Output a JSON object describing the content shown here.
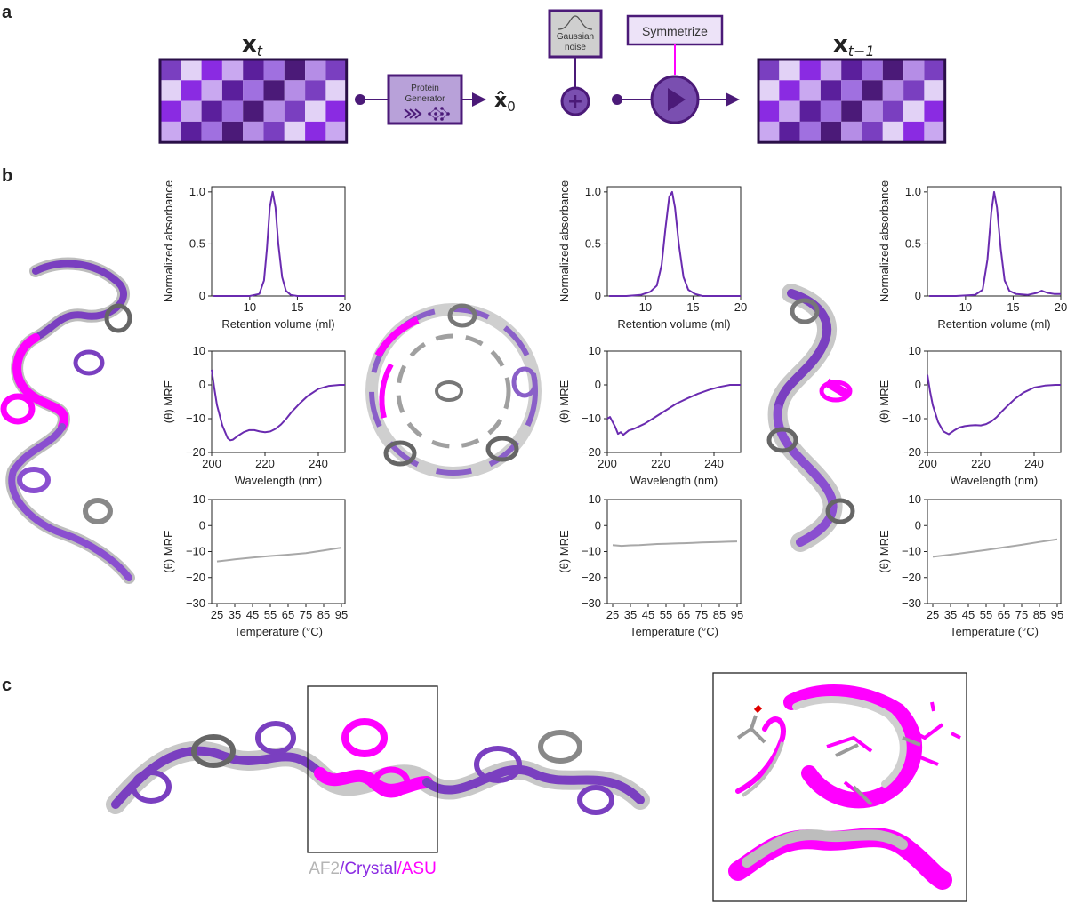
{
  "colors": {
    "purple_dark": "#4b1a78",
    "purple_main": "#7a3fc0",
    "purple_light": "#b58de6",
    "purple_pale": "#d9c8f0",
    "violet": "#8a2be2",
    "magenta": "#ff00ff",
    "gray": "#b5b5b5",
    "line_purple": "#6a2bb0",
    "line_gray": "#a8a8a8"
  },
  "panel_labels": {
    "a": "a",
    "b": "b",
    "c": "c"
  },
  "panel_a": {
    "xt_label": "x",
    "xt_sub": "t",
    "xt1_label": "x",
    "xt1_sub": "t−1",
    "x0_label": "x̂",
    "x0_sub": "0",
    "generator_line1": "Protein",
    "generator_line2": "Generator",
    "noise_line1": "Gaussian",
    "noise_line2": "noise",
    "symmetrize_label": "Symmetrize",
    "plus_symbol": "+"
  },
  "panel_c": {
    "legend_af2": "AF2",
    "legend_sep1": "/",
    "legend_crystal": "Crystal",
    "legend_sep2": "/",
    "legend_asu": "ASU"
  },
  "chart_data": [
    {
      "id": "sec1",
      "type": "line",
      "xlabel": "Retention volume (ml)",
      "ylabel": "Normalized absorbance",
      "xlim": [
        6,
        20
      ],
      "ylim": [
        0,
        1.05
      ],
      "xticks": [
        10,
        15,
        20
      ],
      "yticks": [
        0,
        0.5,
        1.0
      ],
      "xtick_labels": [
        "10",
        "15",
        "20"
      ],
      "ytick_labels": [
        "0",
        "0.5",
        "1.0"
      ],
      "series": [
        {
          "color": "#6a2bb0",
          "x": [
            6.2,
            8,
            10,
            11,
            11.5,
            11.8,
            12.1,
            12.4,
            12.7,
            13.0,
            13.4,
            13.8,
            14.3,
            15,
            16,
            18,
            20
          ],
          "y": [
            0.0,
            0.0,
            0.0,
            0.02,
            0.15,
            0.45,
            0.85,
            1.0,
            0.85,
            0.5,
            0.18,
            0.05,
            0.01,
            0.0,
            0.0,
            0.0,
            0.0
          ]
        }
      ]
    },
    {
      "id": "cd1",
      "type": "line",
      "xlabel": "Wavelength (nm)",
      "ylabel": "(θ) MRE",
      "xlim": [
        200,
        250
      ],
      "ylim": [
        -20,
        10
      ],
      "xticks": [
        200,
        220,
        240
      ],
      "yticks": [
        -20,
        -10,
        0,
        10
      ],
      "xtick_labels": [
        "200",
        "220",
        "240"
      ],
      "ytick_labels": [
        "−20",
        "−10",
        "0",
        "10"
      ],
      "series": [
        {
          "color": "#6a2bb0",
          "x": [
            200,
            201,
            202,
            204,
            206,
            207,
            208,
            210,
            212,
            214,
            216,
            218,
            220,
            222,
            224,
            226,
            228,
            230,
            233,
            236,
            240,
            244,
            248,
            250
          ],
          "y": [
            4.5,
            -1,
            -6,
            -12,
            -15.8,
            -16.4,
            -16.2,
            -15,
            -14,
            -13.4,
            -13.4,
            -13.8,
            -14,
            -13.8,
            -13,
            -11.7,
            -10,
            -8,
            -5.5,
            -3.3,
            -1.2,
            -0.3,
            0,
            0
          ]
        }
      ]
    },
    {
      "id": "tm1",
      "type": "line",
      "xlabel": "Temperature (°C)",
      "ylabel": "(θ) MRE",
      "xlim": [
        22,
        97
      ],
      "ylim": [
        -30,
        10
      ],
      "xticks": [
        25,
        35,
        45,
        55,
        65,
        75,
        85,
        95
      ],
      "yticks": [
        -30,
        -20,
        -10,
        0,
        10
      ],
      "xtick_labels": [
        "25",
        "35",
        "45",
        "55",
        "65",
        "75",
        "85",
        "95"
      ],
      "ytick_labels": [
        "−30",
        "−20",
        "−10",
        "0",
        "10"
      ],
      "series": [
        {
          "color": "#a8a8a8",
          "x": [
            25,
            35,
            45,
            55,
            65,
            75,
            85,
            95
          ],
          "y": [
            -13.8,
            -13.0,
            -12.3,
            -11.7,
            -11.2,
            -10.6,
            -9.6,
            -8.5
          ]
        }
      ]
    },
    {
      "id": "sec2",
      "type": "line",
      "xlabel": "Retention volume (ml)",
      "ylabel": "Normalized absorbance",
      "xlim": [
        6,
        20
      ],
      "ylim": [
        0,
        1.05
      ],
      "xticks": [
        10,
        15,
        20
      ],
      "yticks": [
        0,
        0.5,
        1.0
      ],
      "xtick_labels": [
        "10",
        "15",
        "20"
      ],
      "ytick_labels": [
        "0",
        "0.5",
        "1.0"
      ],
      "series": [
        {
          "color": "#6a2bb0",
          "x": [
            6.2,
            8,
            9.5,
            10.5,
            11.2,
            11.7,
            12.1,
            12.5,
            12.8,
            13.1,
            13.5,
            14,
            14.5,
            15.2,
            16,
            18,
            20
          ],
          "y": [
            0.0,
            0.0,
            0.01,
            0.04,
            0.1,
            0.3,
            0.65,
            0.95,
            1.0,
            0.85,
            0.5,
            0.18,
            0.06,
            0.02,
            0.0,
            0.0,
            0.0
          ]
        }
      ]
    },
    {
      "id": "cd2",
      "type": "line",
      "xlabel": "Wavelength (nm)",
      "ylabel": "(θ) MRE",
      "xlim": [
        200,
        250
      ],
      "ylim": [
        -20,
        10
      ],
      "xticks": [
        200,
        220,
        240
      ],
      "yticks": [
        -20,
        -10,
        0,
        10
      ],
      "xtick_labels": [
        "200",
        "220",
        "240"
      ],
      "ytick_labels": [
        "−20",
        "−10",
        "0",
        "10"
      ],
      "series": [
        {
          "color": "#6a2bb0",
          "x": [
            200,
            201,
            202,
            203,
            204,
            205,
            206,
            208,
            210,
            214,
            218,
            222,
            226,
            230,
            234,
            238,
            242,
            246,
            250
          ],
          "y": [
            -10,
            -9.5,
            -11,
            -12.5,
            -14.5,
            -14,
            -14.8,
            -13.5,
            -13,
            -11.5,
            -9.5,
            -7.5,
            -5.5,
            -4,
            -2.6,
            -1.5,
            -0.6,
            0,
            0
          ]
        }
      ]
    },
    {
      "id": "tm2",
      "type": "line",
      "xlabel": "Temperature (°C)",
      "ylabel": "(θ) MRE",
      "xlim": [
        22,
        97
      ],
      "ylim": [
        -30,
        10
      ],
      "xticks": [
        25,
        35,
        45,
        55,
        65,
        75,
        85,
        95
      ],
      "yticks": [
        -30,
        -20,
        -10,
        0,
        10
      ],
      "xtick_labels": [
        "25",
        "35",
        "45",
        "55",
        "65",
        "75",
        "85",
        "95"
      ],
      "ytick_labels": [
        "−30",
        "−20",
        "−10",
        "0",
        "10"
      ],
      "series": [
        {
          "color": "#a8a8a8",
          "x": [
            25,
            30,
            35,
            40,
            45,
            50,
            55,
            60,
            65,
            70,
            75,
            80,
            85,
            90,
            95
          ],
          "y": [
            -7.5,
            -7.8,
            -7.6,
            -7.5,
            -7.3,
            -7.1,
            -7.0,
            -6.9,
            -6.8,
            -6.7,
            -6.5,
            -6.4,
            -6.3,
            -6.2,
            -6.1
          ]
        }
      ]
    },
    {
      "id": "sec3",
      "type": "line",
      "xlabel": "Retention volume (ml)",
      "ylabel": "Normalized absorbance",
      "xlim": [
        6,
        20
      ],
      "ylim": [
        0,
        1.05
      ],
      "xticks": [
        10,
        15,
        20
      ],
      "yticks": [
        0,
        0.5,
        1.0
      ],
      "xtick_labels": [
        "10",
        "15",
        "20"
      ],
      "ytick_labels": [
        "0",
        "0.5",
        "1.0"
      ],
      "series": [
        {
          "color": "#6a2bb0",
          "x": [
            6.2,
            9,
            11,
            11.8,
            12.3,
            12.7,
            13.0,
            13.3,
            13.7,
            14.1,
            14.6,
            15.3,
            16.5,
            17.5,
            18,
            18.6,
            19.3,
            20
          ],
          "y": [
            0.0,
            0.0,
            0.01,
            0.06,
            0.35,
            0.8,
            1.0,
            0.85,
            0.45,
            0.15,
            0.05,
            0.02,
            0.01,
            0.03,
            0.05,
            0.03,
            0.02,
            0.02
          ]
        }
      ]
    },
    {
      "id": "cd3",
      "type": "line",
      "xlabel": "Wavelength (nm)",
      "ylabel": "(θ) MRE",
      "xlim": [
        200,
        250
      ],
      "ylim": [
        -20,
        10
      ],
      "xticks": [
        200,
        220,
        240
      ],
      "yticks": [
        -20,
        -10,
        0,
        10
      ],
      "xtick_labels": [
        "200",
        "220",
        "240"
      ],
      "ytick_labels": [
        "−20",
        "−10",
        "0",
        "10"
      ],
      "series": [
        {
          "color": "#6a2bb0",
          "x": [
            200,
            201,
            202,
            204,
            206,
            208,
            210,
            212,
            214,
            216,
            218,
            220,
            222,
            224,
            226,
            228,
            230,
            233,
            236,
            240,
            244,
            248,
            250
          ],
          "y": [
            3,
            -2,
            -6,
            -11,
            -13.8,
            -14.6,
            -13.5,
            -12.6,
            -12.2,
            -12.0,
            -11.9,
            -12.0,
            -11.6,
            -10.8,
            -9.5,
            -7.8,
            -6.2,
            -4,
            -2.3,
            -0.8,
            -0.2,
            0,
            0
          ]
        }
      ]
    },
    {
      "id": "tm3",
      "type": "line",
      "xlabel": "Temperature (°C)",
      "ylabel": "(θ) MRE",
      "xlim": [
        22,
        97
      ],
      "ylim": [
        -30,
        10
      ],
      "xticks": [
        25,
        35,
        45,
        55,
        65,
        75,
        85,
        95
      ],
      "yticks": [
        -30,
        -20,
        -10,
        0,
        10
      ],
      "xtick_labels": [
        "25",
        "35",
        "45",
        "55",
        "65",
        "75",
        "85",
        "95"
      ],
      "ytick_labels": [
        "−30",
        "−20",
        "−10",
        "0",
        "10"
      ],
      "series": [
        {
          "color": "#a8a8a8",
          "x": [
            25,
            35,
            45,
            55,
            65,
            75,
            85,
            95
          ],
          "y": [
            -12,
            -11.2,
            -10.3,
            -9.4,
            -8.4,
            -7.4,
            -6.3,
            -5.3
          ]
        }
      ]
    }
  ]
}
